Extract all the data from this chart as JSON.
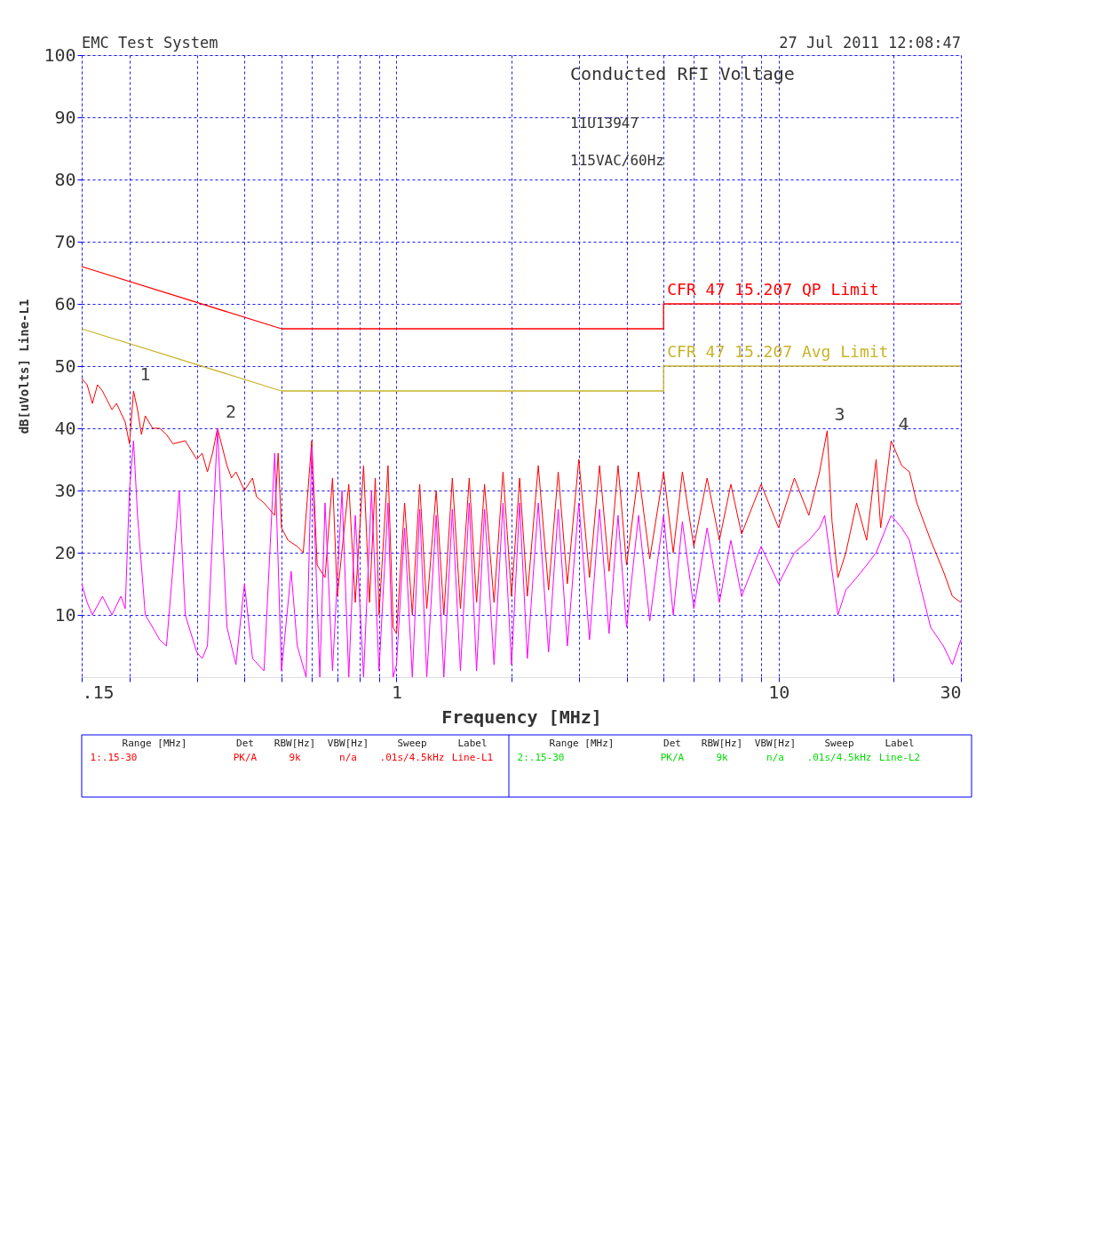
{
  "chart_data": {
    "type": "line",
    "title": "Conducted RFI Voltage",
    "subtitle": "11U13947",
    "xlabel": "Frequency [MHz]",
    "ylabel": "dB[uVolts] Line-L1",
    "log": "x",
    "grid": true,
    "xlim": [
      0.15,
      30
    ],
    "ylim": [
      0,
      100
    ],
    "xticks": [
      {
        "value": 0.15,
        "label": ".15"
      },
      {
        "value": 0.2,
        "label": null
      },
      {
        "value": 0.3,
        "label": null
      },
      {
        "value": 0.4,
        "label": null
      },
      {
        "value": 0.5,
        "label": null
      },
      {
        "value": 0.6,
        "label": null
      },
      {
        "value": 0.7,
        "label": null
      },
      {
        "value": 0.8,
        "label": null
      },
      {
        "value": 0.9,
        "label": null
      },
      1,
      {
        "value": 2,
        "label": null
      },
      {
        "value": 3,
        "label": null
      },
      {
        "value": 4,
        "label": null
      },
      {
        "value": 5,
        "label": null
      },
      {
        "value": 6,
        "label": null
      },
      {
        "value": 7,
        "label": null
      },
      {
        "value": 8,
        "label": null
      },
      {
        "value": 9,
        "label": null
      },
      10,
      {
        "value": 20,
        "label": null
      },
      30
    ],
    "yticks": [
      10,
      20,
      30,
      40,
      50,
      60,
      70,
      80,
      90,
      100
    ],
    "series": [
      {
        "color": "#ff0000",
        "x": [
          0.15,
          0.155,
          0.16,
          0.165,
          0.17,
          0.18,
          0.185,
          0.195,
          0.2,
          0.205,
          0.21,
          0.215,
          0.22,
          0.23,
          0.24,
          0.25,
          0.26,
          0.28,
          0.3,
          0.31,
          0.32,
          0.33,
          0.34,
          0.36,
          0.37,
          0.38,
          0.4,
          0.42,
          0.43,
          0.45,
          0.48,
          0.49,
          0.5,
          0.52,
          0.55,
          0.57,
          0.6,
          0.62,
          0.65,
          0.68,
          0.7,
          0.75,
          0.78,
          0.82,
          0.85,
          0.88,
          0.9,
          0.95,
          0.98,
          1.0,
          1.05,
          1.1,
          1.15,
          1.2,
          1.27,
          1.33,
          1.4,
          1.47,
          1.55,
          1.62,
          1.7,
          1.8,
          1.9,
          2.0,
          2.1,
          2.2,
          2.35,
          2.5,
          2.65,
          2.8,
          3.0,
          3.2,
          3.4,
          3.6,
          3.8,
          4.0,
          4.3,
          4.6,
          5.0,
          5.3,
          5.6,
          6.0,
          6.5,
          7.0,
          7.5,
          8.0,
          9.0,
          10,
          11,
          12,
          12.8,
          13.4,
          13.8,
          14.3,
          15,
          16,
          17,
          18,
          18.5,
          19.7,
          21,
          22,
          23,
          25,
          27,
          28.5,
          30
        ],
        "values": [
          48,
          47,
          44,
          47,
          46,
          43,
          44,
          41,
          37.5,
          46,
          43,
          39,
          42,
          40,
          40,
          39,
          37.5,
          38,
          35,
          36,
          33,
          36,
          40,
          34,
          32,
          33,
          30,
          32,
          29,
          28,
          26,
          36,
          24,
          22,
          21,
          20,
          38,
          18,
          16,
          32,
          13,
          31,
          12,
          34,
          12,
          32,
          10,
          34,
          8,
          7,
          28,
          10,
          31,
          11,
          30,
          10,
          32,
          11,
          32,
          12,
          31,
          12,
          33,
          13,
          32,
          13,
          34,
          14,
          33,
          15,
          35,
          16,
          34,
          17,
          34,
          18,
          33,
          19,
          33,
          20,
          33,
          21,
          32,
          22,
          31,
          23,
          31,
          24,
          32,
          26,
          33,
          39.6,
          25,
          16,
          20,
          28,
          22,
          35,
          24,
          38,
          34,
          33,
          28,
          22,
          17,
          13,
          12
        ]
      },
      {
        "color": "#ff00ff",
        "x": [
          0.15,
          0.155,
          0.16,
          0.17,
          0.18,
          0.19,
          0.195,
          0.2,
          0.205,
          0.21,
          0.22,
          0.23,
          0.24,
          0.25,
          0.27,
          0.28,
          0.3,
          0.31,
          0.32,
          0.34,
          0.36,
          0.38,
          0.4,
          0.42,
          0.45,
          0.48,
          0.5,
          0.53,
          0.55,
          0.58,
          0.6,
          0.63,
          0.65,
          0.68,
          0.72,
          0.75,
          0.78,
          0.82,
          0.86,
          0.9,
          0.95,
          0.98,
          1.0,
          1.05,
          1.1,
          1.15,
          1.2,
          1.27,
          1.33,
          1.4,
          1.47,
          1.55,
          1.62,
          1.7,
          1.8,
          1.9,
          2.0,
          2.1,
          2.2,
          2.35,
          2.5,
          2.65,
          2.8,
          3.0,
          3.2,
          3.4,
          3.6,
          3.8,
          4.0,
          4.3,
          4.6,
          5.0,
          5.3,
          5.6,
          6.0,
          6.5,
          7.0,
          7.5,
          8.0,
          9.0,
          10,
          11,
          12,
          12.8,
          13.2,
          13.6,
          14.3,
          15,
          16,
          17,
          18,
          19.7,
          21,
          22,
          23,
          25,
          27,
          28.5,
          30
        ],
        "values": [
          15,
          12,
          10,
          13,
          10,
          13,
          11,
          30,
          38,
          26,
          10,
          8,
          6,
          5,
          30,
          10,
          4,
          3,
          5,
          40,
          8,
          2,
          15,
          3,
          1,
          36,
          1,
          17,
          5,
          0,
          37,
          0,
          28,
          1,
          30,
          0,
          26,
          0,
          30,
          1,
          28,
          0,
          2,
          24,
          0,
          27,
          0,
          26,
          0,
          27,
          1,
          28,
          1,
          27,
          2,
          28,
          2,
          28,
          3,
          28,
          4,
          27,
          5,
          28,
          6,
          27,
          7,
          26,
          8,
          26,
          9,
          26,
          10,
          25,
          11,
          24,
          12,
          22,
          13,
          21,
          15,
          20,
          22,
          24,
          26,
          20,
          10,
          14,
          16,
          18,
          20,
          26,
          24,
          22,
          17,
          8,
          5,
          2,
          6
        ]
      },
      {
        "name": "CFR 47 15.207 QP Limit",
        "color": "#ff0000",
        "x": [
          0.15,
          0.5,
          5,
          5,
          30
        ],
        "values": [
          66,
          56,
          56,
          60,
          60
        ]
      },
      {
        "name": "CFR 47 15.207 Avg Limit",
        "color": "#c8b428",
        "x": [
          0.15,
          0.5,
          5,
          5,
          30
        ],
        "values": [
          56,
          46,
          46,
          50,
          50
        ]
      }
    ],
    "annotations": [
      "EMC Test System",
      "27 Jul 2011   12:08:47",
      "115VAC/60Hz",
      {
        "text": "1",
        "x": 0.204,
        "y": 46
      },
      {
        "text": "2",
        "x": 0.342,
        "y": 40
      },
      {
        "text": "3",
        "x": 13.4,
        "y": 39.6
      },
      {
        "text": "4",
        "x": 19.7,
        "y": 38
      },
      "Range [MHz]  Det  RBW[Hz]  VBW[Hz]  Sweep  Label",
      "1:.15-30  PK/A  9k  n/a  .01s/4.5kHz  Line-L1",
      "Range [MHz]  Det  RBW[Hz]  VBW[Hz]  Sweep  Label",
      "2:.15-30  PK/A  9k  n/a  .01s/4.5kHz  Line-L2"
    ]
  }
}
